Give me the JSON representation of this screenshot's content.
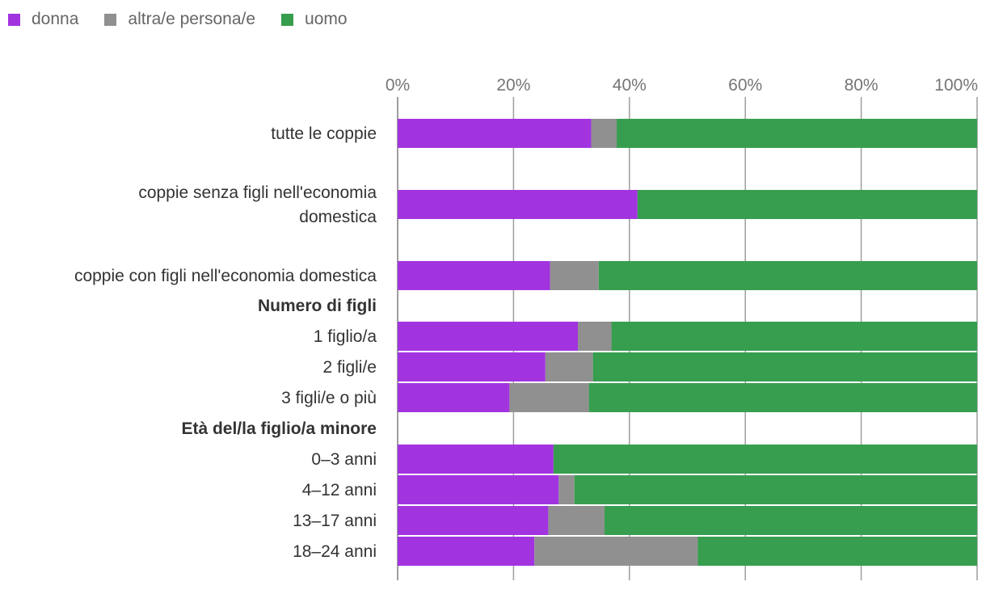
{
  "colors": {
    "donna": "#a234e0",
    "altra": "#909090",
    "uomo": "#379e4f",
    "grid": "#9e9e9e"
  },
  "legend": [
    {
      "label": "donna",
      "color_key": "donna"
    },
    {
      "label": "altra/e persona/e",
      "color_key": "altra"
    },
    {
      "label": "uomo",
      "color_key": "uomo"
    }
  ],
  "chart_data": {
    "type": "bar",
    "orientation": "horizontal",
    "stacked": true,
    "title": "",
    "xlabel": "",
    "ylabel": "",
    "xlim": [
      0,
      100
    ],
    "x_ticks": [
      "0%",
      "20%",
      "40%",
      "60%",
      "80%",
      "100%"
    ],
    "grid": true,
    "legend_position": "top-left",
    "rows": [
      {
        "label": [
          "tutte le coppie"
        ],
        "heading": false
      },
      {
        "label": [
          "coppie senza figli nell'economia",
          "domestica"
        ],
        "heading": false
      },
      {
        "label": [
          "coppie con figli nell'economia domestica"
        ],
        "heading": false
      },
      {
        "label": [
          "Numero di figli"
        ],
        "heading": true
      },
      {
        "label": [
          "1 figlio/a"
        ],
        "heading": false
      },
      {
        "label": [
          "2 figli/e"
        ],
        "heading": false
      },
      {
        "label": [
          "3 figli/e o più"
        ],
        "heading": false
      },
      {
        "label": [
          "Età del/la figlio/a minore"
        ],
        "heading": true
      },
      {
        "label": [
          "0–3 anni"
        ],
        "heading": false
      },
      {
        "label": [
          "4–12 anni"
        ],
        "heading": false
      },
      {
        "label": [
          "13–17 anni"
        ],
        "heading": false
      },
      {
        "label": [
          "18–24 anni"
        ],
        "heading": false
      }
    ],
    "series": [
      {
        "name": "donna",
        "color_key": "donna",
        "values": [
          33.4,
          41.4,
          26.3,
          null,
          31.1,
          25.5,
          19.3,
          null,
          26.9,
          27.8,
          26.0,
          23.6
        ]
      },
      {
        "name": "altra/e persona/e",
        "color_key": "altra",
        "values": [
          4.4,
          0,
          8.4,
          null,
          5.8,
          8.2,
          13.7,
          null,
          0,
          2.7,
          9.7,
          28.2
        ]
      },
      {
        "name": "uomo",
        "color_key": "uomo",
        "values": [
          62.2,
          58.6,
          65.3,
          null,
          63.1,
          66.3,
          67.0,
          null,
          73.1,
          69.5,
          64.3,
          48.2
        ]
      }
    ]
  }
}
